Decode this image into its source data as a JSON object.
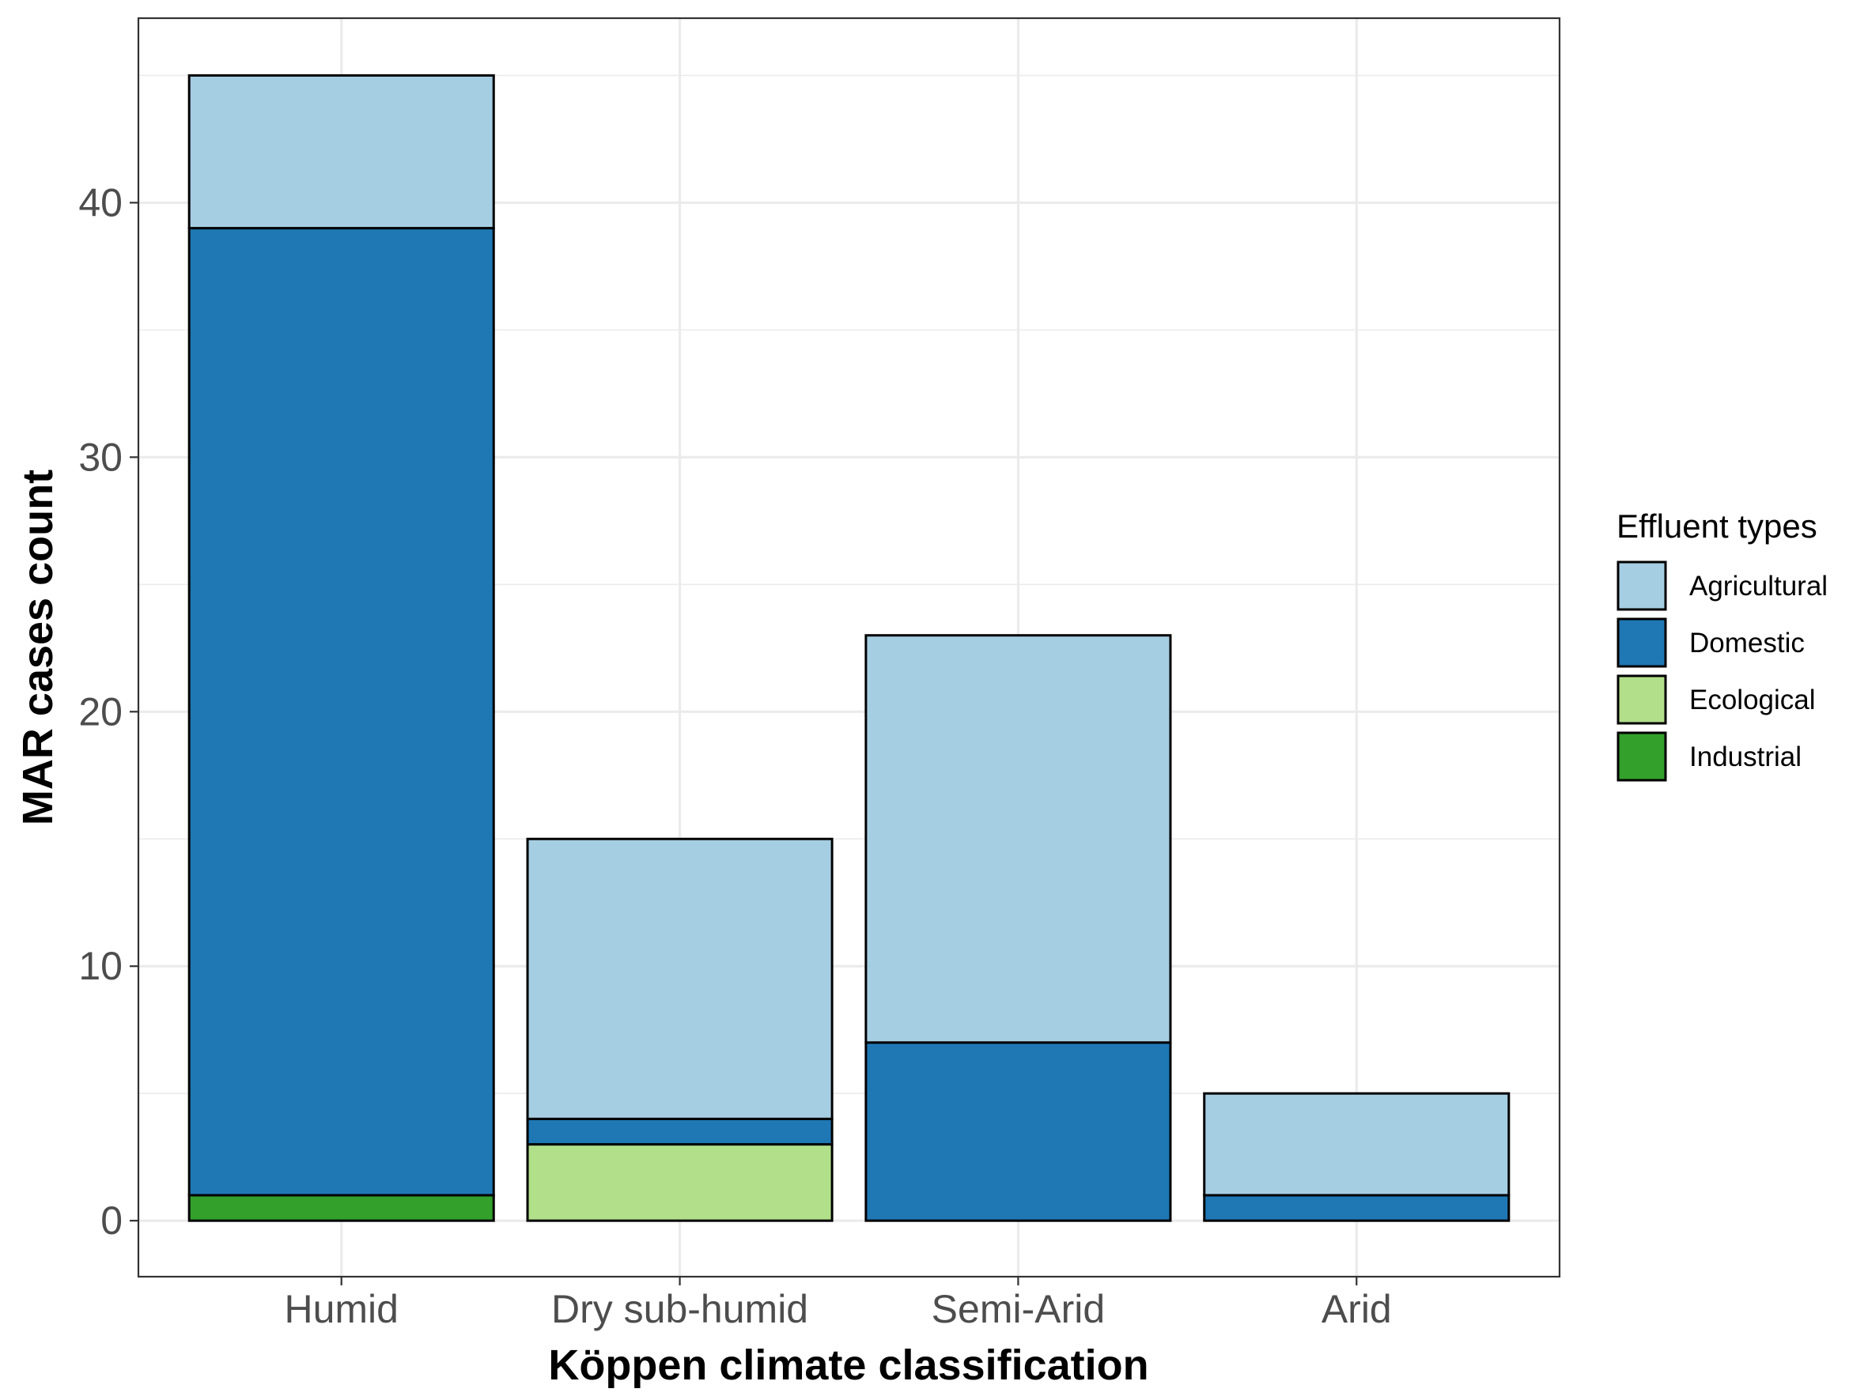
{
  "chart_data": {
    "type": "bar",
    "stacked": true,
    "categories": [
      "Humid",
      "Dry sub-humid",
      "Semi-Arid",
      "Arid"
    ],
    "series": [
      {
        "name": "Industrial",
        "color": "#33a02c",
        "values": [
          1,
          0,
          0,
          0
        ]
      },
      {
        "name": "Ecological",
        "color": "#b2df8a",
        "values": [
          0,
          3,
          0,
          0
        ]
      },
      {
        "name": "Domestic",
        "color": "#1f78b4",
        "values": [
          38,
          1,
          7,
          1
        ]
      },
      {
        "name": "Agricultural",
        "color": "#a6cee3",
        "values": [
          6,
          11,
          16,
          4
        ]
      }
    ],
    "legend_order": [
      "Agricultural",
      "Domestic",
      "Ecological",
      "Industrial"
    ],
    "xlabel": "Köppen climate classification",
    "ylabel": "MAR cases count",
    "legend_title": "Effluent types",
    "legend_position": "right",
    "ylim": [
      -2.2,
      47.25
    ],
    "yticks": [
      0,
      10,
      20,
      30,
      40
    ],
    "grid": true
  }
}
